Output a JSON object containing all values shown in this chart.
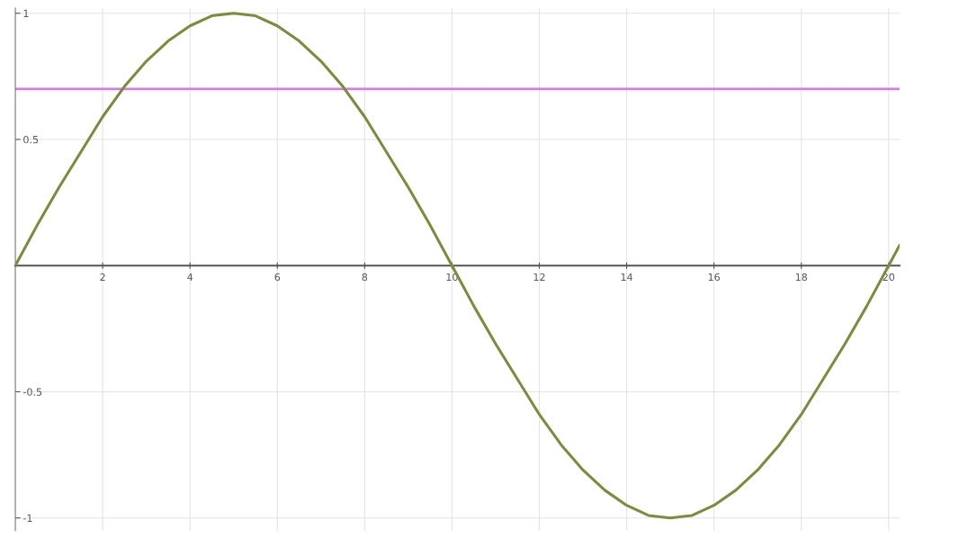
{
  "chart_data": {
    "type": "line",
    "x": [
      0,
      0.5,
      1,
      1.5,
      2,
      2.5,
      3,
      3.5,
      4,
      4.5,
      5,
      5.5,
      6,
      6.5,
      7,
      7.5,
      8,
      8.5,
      9,
      9.5,
      10,
      10.5,
      11,
      11.5,
      12,
      12.5,
      13,
      13.5,
      14,
      14.5,
      15,
      15.5,
      16,
      16.5,
      17,
      17.5,
      18,
      18.5,
      19,
      19.5,
      20,
      20.25
    ],
    "series": [
      {
        "color": "#7d8c3c",
        "values": [
          0,
          0.16,
          0.31,
          0.45,
          0.59,
          0.71,
          0.81,
          0.89,
          0.95,
          0.99,
          1,
          0.99,
          0.95,
          0.89,
          0.81,
          0.71,
          0.59,
          0.45,
          0.31,
          0.16,
          0,
          -0.16,
          -0.31,
          -0.45,
          -0.59,
          -0.71,
          -0.81,
          -0.89,
          -0.95,
          -0.99,
          -1,
          -0.99,
          -0.95,
          -0.89,
          -0.81,
          -0.71,
          -0.59,
          -0.45,
          -0.31,
          -0.16,
          0,
          0.08
        ]
      }
    ],
    "ref_lines": [
      {
        "axis": "y",
        "value": 0.7,
        "color": "#d27ee0"
      }
    ],
    "xlim": [
      0,
      20.25
    ],
    "ylim": [
      -1.05,
      1.02
    ],
    "xticks": [
      2,
      4,
      6,
      8,
      10,
      12,
      14,
      16,
      18,
      20
    ],
    "yticks": [
      {
        "value": 1,
        "label": "1"
      },
      0.5,
      -0.5,
      {
        "value": -1,
        "label": "-1"
      }
    ],
    "grid": true,
    "marker": "none",
    "line_style": "solid"
  }
}
